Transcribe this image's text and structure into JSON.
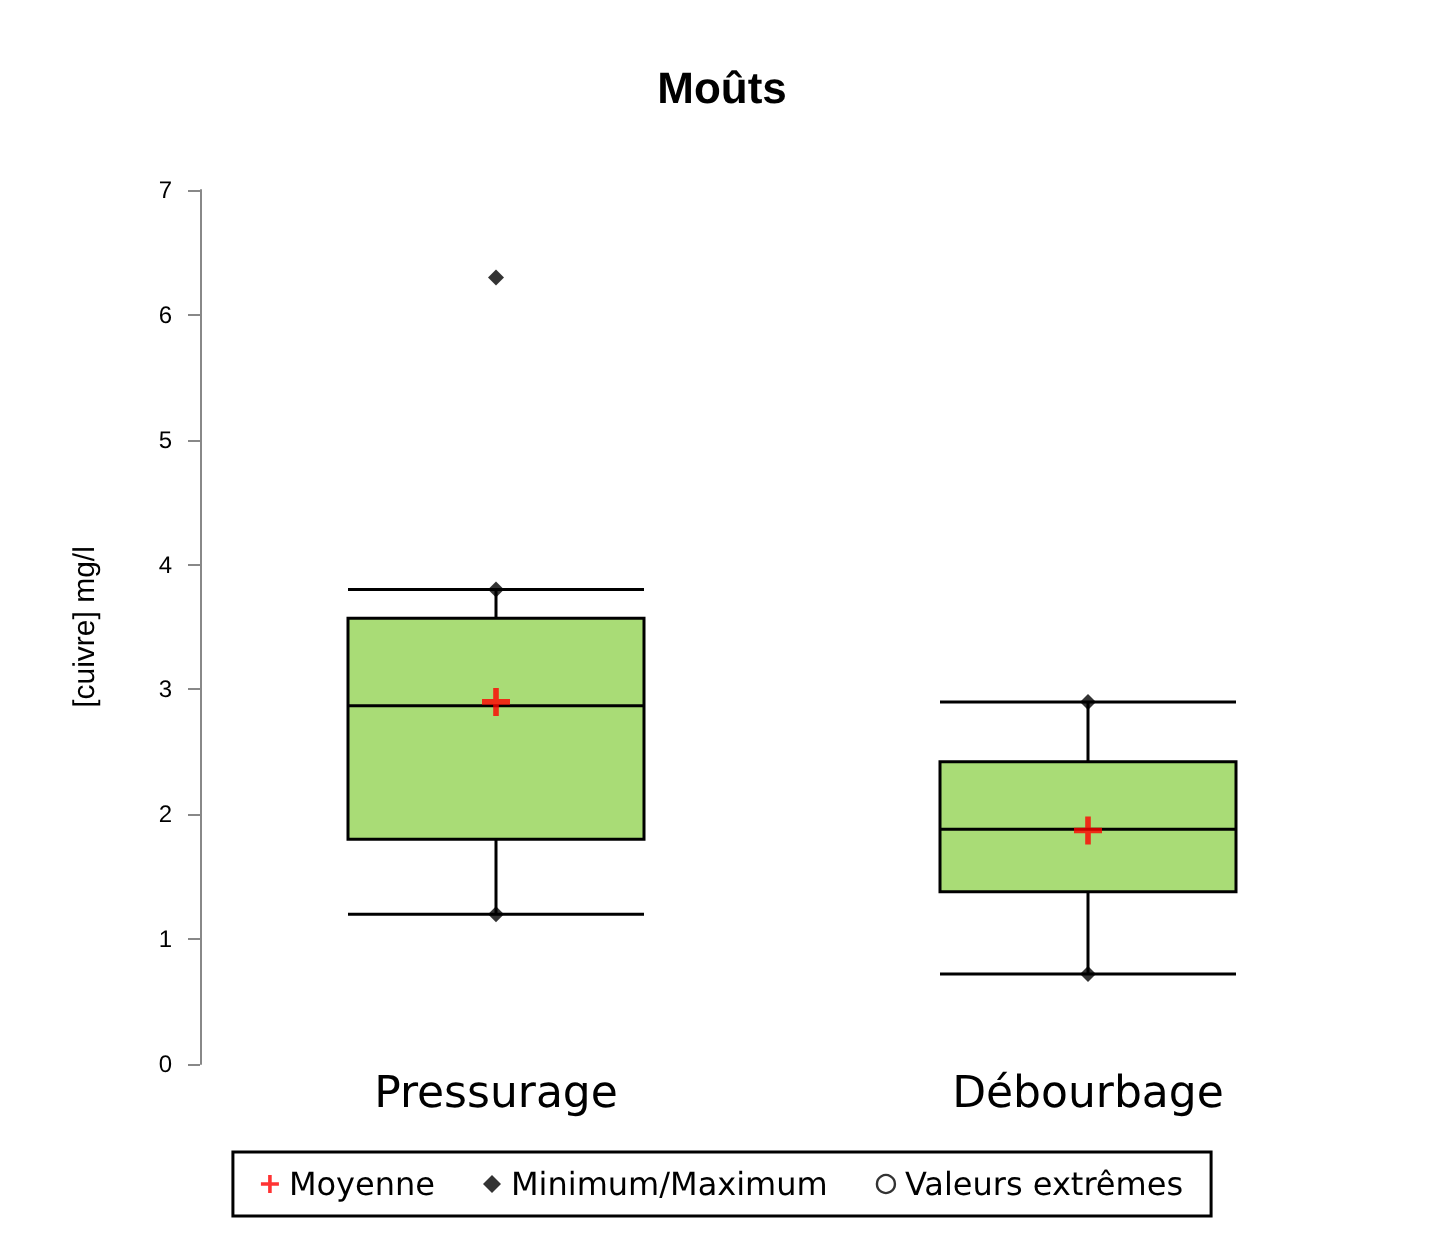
{
  "chart_data": {
    "type": "box",
    "title": "Moûts",
    "ylabel": "[cuivre] mg/l",
    "categories": [
      "Pressurage",
      "Débourbage"
    ],
    "boxes": [
      {
        "low": 1.2,
        "q1": 1.8,
        "median": 2.87,
        "q3": 3.57,
        "high": 3.8
      },
      {
        "low": 0.72,
        "q1": 1.38,
        "median": 1.88,
        "q3": 2.42,
        "high": 2.9
      }
    ],
    "color": "#a9dc76",
    "series": [
      {
        "name": "Moyenne",
        "type": "scatter",
        "marker": "cross",
        "color": "#ff0000",
        "x": [
          "Pressurage",
          "Débourbage"
        ],
        "values": [
          2.9,
          1.87
        ]
      },
      {
        "name": "Minimum/Maximum",
        "type": "scatter",
        "marker": "diamond",
        "color": "#000000",
        "x": [
          "Pressurage",
          "Pressurage",
          "Pressurage",
          "Débourbage",
          "Débourbage"
        ],
        "values": [
          1.2,
          3.8,
          6.3,
          0.72,
          2.9
        ]
      },
      {
        "name": "Valeurs extrêmes",
        "type": "scatter",
        "marker": "circle",
        "color": "#000000",
        "values": [
          null,
          null
        ]
      }
    ],
    "ylim": [
      0,
      7
    ],
    "yticks": [
      0,
      1,
      2,
      3,
      4,
      5,
      6,
      7
    ],
    "grid": false,
    "legend": "bottom"
  }
}
